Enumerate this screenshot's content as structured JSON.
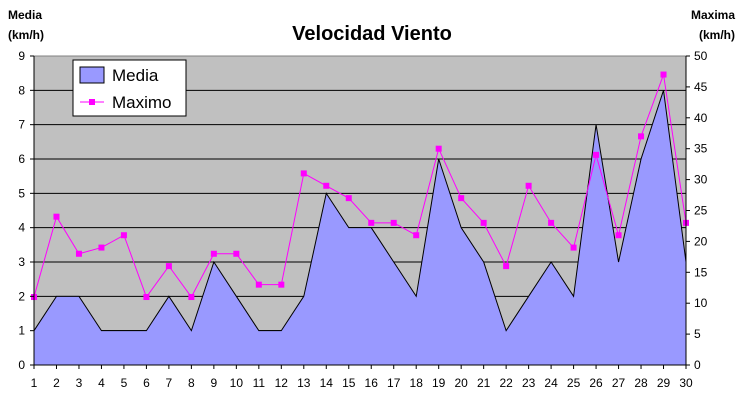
{
  "chart_data": {
    "type": "area",
    "title": "Velocidad Viento",
    "y_left_label": [
      "Media",
      "(km/h)"
    ],
    "y_right_label": [
      "Maxima",
      "(km/h)"
    ],
    "x": [
      1,
      2,
      3,
      4,
      5,
      6,
      7,
      8,
      9,
      10,
      11,
      12,
      13,
      14,
      15,
      16,
      17,
      18,
      19,
      20,
      21,
      22,
      23,
      24,
      25,
      26,
      27,
      28,
      29,
      30
    ],
    "y_left_range": [
      0,
      9
    ],
    "y_right_range": [
      0,
      50
    ],
    "y_left_ticks": [
      0,
      1,
      2,
      3,
      4,
      5,
      6,
      7,
      8,
      9
    ],
    "y_right_ticks": [
      0,
      5,
      10,
      15,
      20,
      25,
      30,
      35,
      40,
      45,
      50
    ],
    "grid": true,
    "legend_position": "top-left",
    "series": [
      {
        "name": "Media",
        "type": "area",
        "axis": "left",
        "color": "#9999ff",
        "values": [
          1,
          2,
          2,
          1,
          1,
          1,
          2,
          1,
          3,
          2,
          1,
          1,
          2,
          5,
          4,
          4,
          3,
          2,
          6,
          4,
          3,
          1,
          2,
          3,
          2,
          7,
          3,
          6,
          8,
          3
        ]
      },
      {
        "name": "Maximo",
        "type": "line",
        "axis": "right",
        "color": "#ff00ff",
        "values": [
          11,
          24,
          18,
          19,
          21,
          11,
          16,
          11,
          18,
          18,
          13,
          13,
          31,
          29,
          27,
          23,
          23,
          21,
          35,
          27,
          23,
          16,
          29,
          23,
          19,
          34,
          21,
          37,
          47,
          23
        ]
      }
    ],
    "plot_background": "#c0c0c0"
  }
}
